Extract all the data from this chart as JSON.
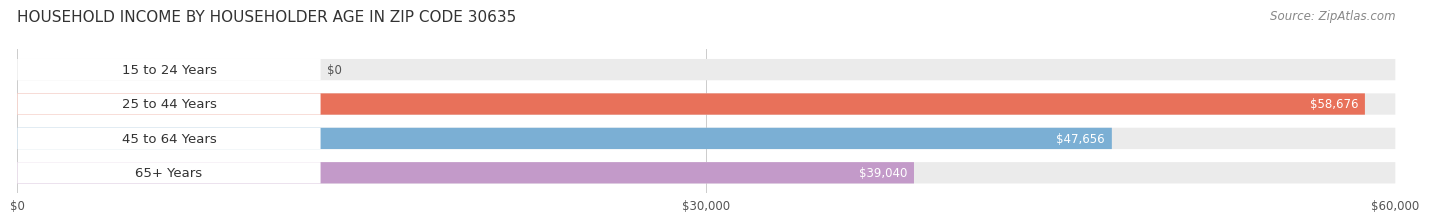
{
  "title": "HOUSEHOLD INCOME BY HOUSEHOLDER AGE IN ZIP CODE 30635",
  "source": "Source: ZipAtlas.com",
  "categories": [
    "15 to 24 Years",
    "25 to 44 Years",
    "45 to 64 Years",
    "65+ Years"
  ],
  "values": [
    0,
    58676,
    47656,
    39040
  ],
  "value_labels": [
    "$0",
    "$58,676",
    "$47,656",
    "$39,040"
  ],
  "bar_colors": [
    "#f5c896",
    "#e8715a",
    "#7bafd4",
    "#c39ac9"
  ],
  "bar_bg_color": "#f0f0f0",
  "label_bg_color": "#ffffff",
  "xlim": [
    0,
    60000
  ],
  "xticks": [
    0,
    30000,
    60000
  ],
  "xtick_labels": [
    "$0",
    "$30,000",
    "$60,000"
  ],
  "title_fontsize": 11,
  "source_fontsize": 8.5,
  "label_fontsize": 9.5,
  "value_fontsize": 8.5,
  "tick_fontsize": 8.5,
  "bg_color": "#ffffff",
  "bar_height": 0.62,
  "bar_bg_alpha": 1.0
}
